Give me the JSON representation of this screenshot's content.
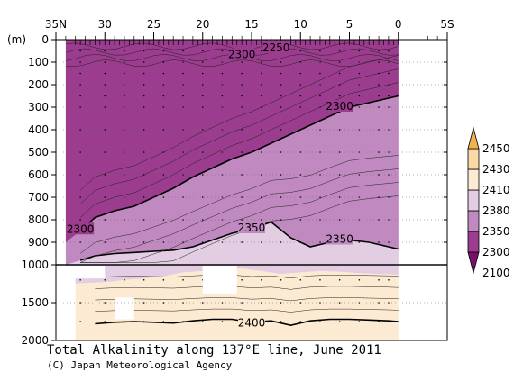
{
  "chart_data": {
    "type": "heatmap",
    "title": "Total Alkalinity along 137°E line, June 2011",
    "credit": "(C) Japan Meteorological Agency",
    "ylabel": "(m)",
    "xlim": [
      35,
      -5
    ],
    "x_ticks": [
      {
        "value": 35,
        "label": "35N"
      },
      {
        "value": 30,
        "label": "30"
      },
      {
        "value": 25,
        "label": "25"
      },
      {
        "value": 20,
        "label": "20"
      },
      {
        "value": 15,
        "label": "15"
      },
      {
        "value": 10,
        "label": "10"
      },
      {
        "value": 5,
        "label": "5"
      },
      {
        "value": 0,
        "label": "0"
      },
      {
        "value": -5,
        "label": "5S"
      }
    ],
    "y_ticks_upper": [
      0,
      100,
      200,
      300,
      400,
      500,
      600,
      700,
      800,
      900,
      1000
    ],
    "y_ticks_lower": [
      1000,
      1500,
      2000
    ],
    "ylim": [
      0,
      2000
    ],
    "depth_scale_break": 1000,
    "colorbar": {
      "levels": [
        2100,
        2300,
        2350,
        2380,
        2410,
        2430,
        2450
      ],
      "labels": [
        "2450",
        "2430",
        "2410",
        "2380",
        "2350",
        "2300",
        "2100"
      ],
      "colors": [
        "#7b0f6e",
        "#9c3c8e",
        "#c08ac0",
        "#e2cde2",
        "#fcebd2",
        "#fad9a4",
        "#f5b04f"
      ]
    },
    "contour_labels": [
      {
        "text": "2250",
        "lat": 12.5,
        "depth": 40
      },
      {
        "text": "2300",
        "lat": 16.0,
        "depth": 70
      },
      {
        "text": "2300",
        "lat": 6.0,
        "depth": 300
      },
      {
        "text": "2300",
        "lat": 32.5,
        "depth": 845
      },
      {
        "text": "2350",
        "lat": 15.0,
        "depth": 840
      },
      {
        "text": "2350",
        "lat": 6.0,
        "depth": 890
      },
      {
        "text": "2400",
        "lat": 15.0,
        "depth": 1780
      }
    ],
    "contour_2300": {
      "lats": [
        32.5,
        31,
        29,
        27,
        25,
        23,
        21,
        19,
        17,
        15,
        13,
        11,
        9,
        7,
        5,
        3,
        1,
        0
      ],
      "depths": [
        850,
        790,
        760,
        740,
        700,
        660,
        610,
        570,
        530,
        500,
        460,
        420,
        380,
        340,
        300,
        280,
        260,
        250
      ]
    },
    "contour_2350": {
      "lats": [
        32.5,
        31,
        29,
        27,
        25,
        23,
        21,
        19,
        17,
        15,
        13,
        11,
        9,
        7,
        5,
        3,
        1,
        0
      ],
      "depths": [
        980,
        960,
        950,
        945,
        940,
        935,
        920,
        890,
        860,
        840,
        810,
        880,
        920,
        900,
        890,
        900,
        920,
        930
      ]
    },
    "contour_2400": {
      "lats": [
        31,
        29,
        27,
        25,
        23,
        21,
        19,
        17,
        15,
        13,
        11,
        9,
        7,
        5,
        3,
        1,
        0
      ],
      "depths": [
        1780,
        1760,
        1750,
        1760,
        1770,
        1740,
        1720,
        1720,
        1760,
        1740,
        1800,
        1740,
        1720,
        1720,
        1730,
        1740,
        1750
      ]
    }
  }
}
